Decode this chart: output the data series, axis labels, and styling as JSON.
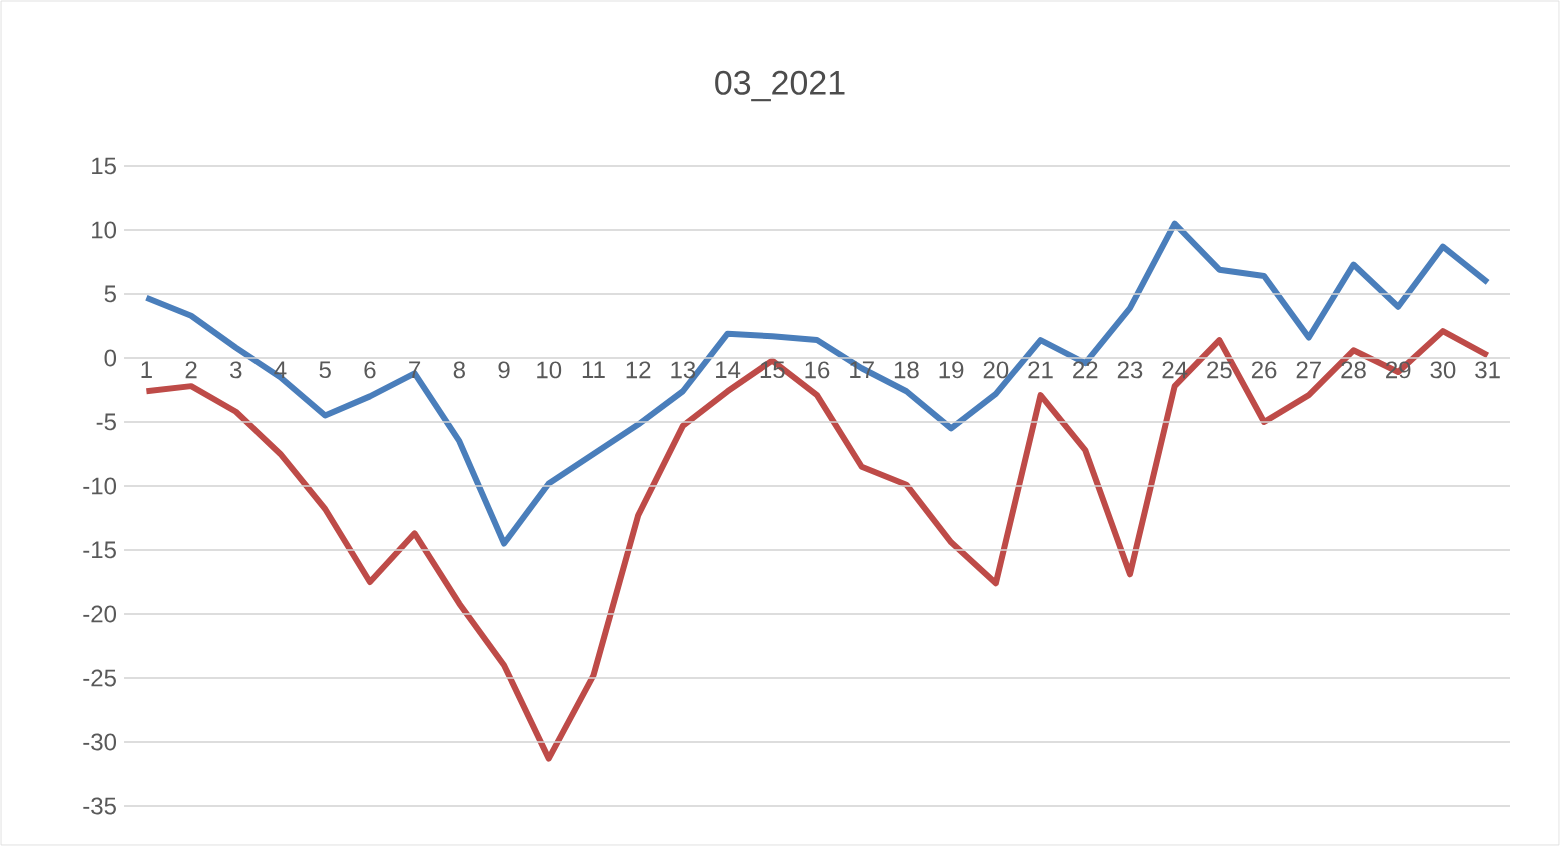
{
  "chart_data": {
    "type": "line",
    "title": "03_2021",
    "categories": [
      "1",
      "2",
      "3",
      "4",
      "5",
      "6",
      "7",
      "8",
      "9",
      "10",
      "11",
      "12",
      "13",
      "14",
      "15",
      "16",
      "17",
      "18",
      "19",
      "20",
      "21",
      "22",
      "23",
      "24",
      "25",
      "26",
      "27",
      "28",
      "29",
      "30",
      "31"
    ],
    "series": [
      {
        "color": "#4a7ebb",
        "values": [
          4.7,
          3.3,
          0.8,
          -1.5,
          -4.5,
          -3,
          -1.2,
          -6.5,
          -14.5,
          -9.8,
          -7.5,
          -5.2,
          -2.6,
          1.9,
          1.7,
          1.4,
          -0.8,
          -2.6,
          -5.5,
          -2.8,
          1.4,
          -0.4,
          3.9,
          10.5,
          6.9,
          6.4,
          1.6,
          7.3,
          4.0,
          8.7,
          5.9
        ]
      },
      {
        "color": "#be4b48",
        "values": [
          -2.6,
          -2.2,
          -4.2,
          -7.5,
          -11.8,
          -17.5,
          -13.7,
          -19.2,
          -24,
          -31.3,
          -24.8,
          -12.3,
          -5.3,
          -2.6,
          -0.2,
          -2.9,
          -8.5,
          -9.9,
          -14.4,
          -17.6,
          -2.9,
          -7.2,
          -16.9,
          -2.2,
          1.4,
          -5,
          -2.9,
          0.6,
          -1.1,
          2.1,
          0.2
        ]
      }
    ],
    "ylim": [
      -35,
      15
    ],
    "yticks": [
      -35,
      -30,
      -25,
      -20,
      -15,
      -10,
      -5,
      0,
      5,
      10,
      15
    ],
    "grid": "y",
    "line_style": "solid",
    "marker": "none"
  }
}
